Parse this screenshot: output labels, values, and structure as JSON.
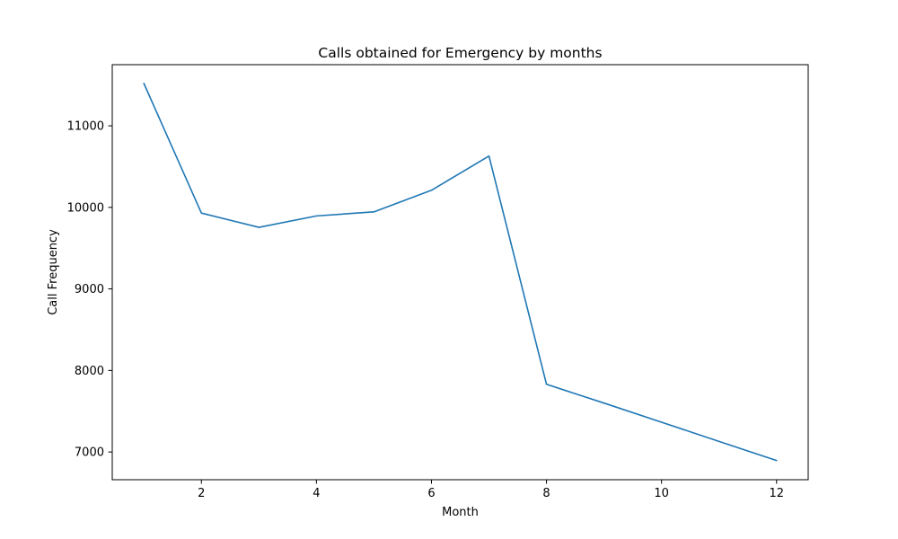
{
  "chart_data": {
    "type": "line",
    "title": "Calls obtained for Emergency by months",
    "xlabel": "Month",
    "ylabel": "Call Frequency",
    "xlim": [
      0.45,
      12.55
    ],
    "ylim": [
      6660,
      11750
    ],
    "xticks": [
      2,
      4,
      6,
      8,
      10,
      12
    ],
    "yticks": [
      7000,
      8000,
      9000,
      10000,
      11000
    ],
    "grid": false,
    "legend": "none",
    "series": [
      {
        "color": "#1f77b4",
        "x": [
          1,
          2,
          3,
          4,
          5,
          6,
          7,
          8,
          9,
          10,
          11,
          12
        ],
        "y": [
          11520,
          9930,
          9755,
          9895,
          9945,
          10210,
          10630,
          7830,
          7600,
          7365,
          7130,
          6895
        ]
      }
    ]
  }
}
